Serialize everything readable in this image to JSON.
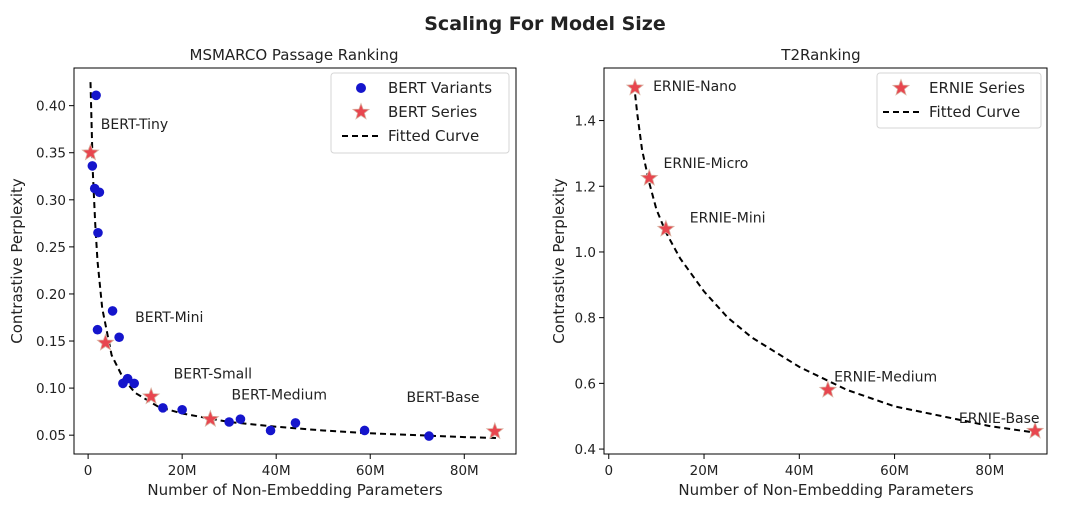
{
  "figure_title": "Scaling For Model Size",
  "colors": {
    "bert_variants": "#1515cc",
    "star_fill": "#e8464f",
    "star_stroke": "#d9b0a0",
    "fitted_curve": "#000000",
    "axes": "#000000"
  },
  "chart_data": [
    {
      "type": "scatter",
      "title": "MSMARCO Passage Ranking",
      "xlabel": "Number of Non-Embedding Parameters",
      "ylabel": "Contrastive Perplexity",
      "xlim": [
        -3,
        91
      ],
      "ylim": [
        0.03,
        0.44
      ],
      "xticks": [
        0,
        20,
        40,
        60,
        80
      ],
      "xtick_labels": [
        "0",
        "20M",
        "40M",
        "60M",
        "80M"
      ],
      "yticks": [
        0.05,
        0.1,
        0.15,
        0.2,
        0.25,
        0.3,
        0.35,
        0.4
      ],
      "ytick_labels": [
        "0.05",
        "0.10",
        "0.15",
        "0.20",
        "0.25",
        "0.30",
        "0.35",
        "0.40"
      ],
      "grid": false,
      "legend_placement": "top-right",
      "legend": [
        "BERT Variants",
        "BERT Series",
        "Fitted Curve"
      ],
      "series": [
        {
          "name": "BERT Variants",
          "marker": "circle",
          "x": [
            1.7,
            0.9,
            1.4,
            2.4,
            2.1,
            2.0,
            5.2,
            6.6,
            7.4,
            8.4,
            9.8,
            15.9,
            20.0,
            30.0,
            32.4,
            38.8,
            44.1,
            58.8,
            72.5
          ],
          "y": [
            0.411,
            0.336,
            0.312,
            0.308,
            0.265,
            0.162,
            0.182,
            0.154,
            0.105,
            0.11,
            0.105,
            0.079,
            0.077,
            0.064,
            0.067,
            0.055,
            0.063,
            0.055,
            0.049
          ]
        },
        {
          "name": "BERT Series",
          "marker": "star",
          "x": [
            0.5,
            3.7,
            13.4,
            26.0,
            86.5
          ],
          "y": [
            0.35,
            0.148,
            0.091,
            0.067,
            0.054
          ]
        },
        {
          "name": "Fitted Curve",
          "line": "dashed",
          "x": [
            0.5,
            1.0,
            1.5,
            2.0,
            3.0,
            5.0,
            7.5,
            10.0,
            15.0,
            20.0,
            30.0,
            40.0,
            50.0,
            60.0,
            70.0,
            80.0,
            87.0
          ],
          "y": [
            0.425,
            0.33,
            0.275,
            0.235,
            0.185,
            0.135,
            0.11,
            0.095,
            0.08,
            0.073,
            0.064,
            0.059,
            0.055,
            0.052,
            0.05,
            0.048,
            0.047
          ]
        }
      ],
      "annotations": [
        {
          "text": "BERT-Tiny",
          "x": 2.7,
          "y": 0.375
        },
        {
          "text": "BERT-Mini",
          "x": 10.0,
          "y": 0.17
        },
        {
          "text": "BERT-Small",
          "x": 18.2,
          "y": 0.11
        },
        {
          "text": "BERT-Medium",
          "x": 30.5,
          "y": 0.088
        },
        {
          "text": "BERT-Base",
          "x": 67.7,
          "y": 0.085
        }
      ]
    },
    {
      "type": "scatter",
      "title": "T2Ranking",
      "xlabel": "Number of Non-Embedding Parameters",
      "ylabel": "Contrastive Perplexity",
      "xlim": [
        -1,
        92
      ],
      "ylim": [
        0.385,
        1.56
      ],
      "xticks": [
        0,
        20,
        40,
        60,
        80
      ],
      "xtick_labels": [
        "0",
        "20M",
        "40M",
        "60M",
        "80M"
      ],
      "yticks": [
        0.4,
        0.6,
        0.8,
        1.0,
        1.2,
        1.4
      ],
      "ytick_labels": [
        "0.4",
        "0.6",
        "0.8",
        "1.0",
        "1.2",
        "1.4"
      ],
      "grid": false,
      "legend_placement": "top-right",
      "legend": [
        "ERNIE Series",
        "Fitted Curve"
      ],
      "series": [
        {
          "name": "ERNIE Series",
          "marker": "star",
          "x": [
            5.5,
            8.5,
            12.0,
            46.0,
            89.5
          ],
          "y": [
            1.5,
            1.225,
            1.07,
            0.58,
            0.455
          ]
        },
        {
          "name": "Fitted Curve",
          "line": "dashed",
          "x": [
            5.3,
            6.0,
            7.0,
            8.5,
            10.0,
            12.0,
            15.0,
            20.0,
            25.0,
            30.0,
            40.0,
            50.0,
            60.0,
            70.0,
            80.0,
            89.5
          ],
          "y": [
            1.51,
            1.42,
            1.31,
            1.21,
            1.13,
            1.06,
            0.98,
            0.88,
            0.8,
            0.74,
            0.65,
            0.58,
            0.53,
            0.5,
            0.47,
            0.45
          ]
        }
      ],
      "annotations": [
        {
          "text": "ERNIE-Nano",
          "x": 9.3,
          "y": 1.49
        },
        {
          "text": "ERNIE-Micro",
          "x": 11.5,
          "y": 1.255
        },
        {
          "text": "ERNIE-Mini",
          "x": 17.0,
          "y": 1.09
        },
        {
          "text": "ERNIE-Medium",
          "x": 47.3,
          "y": 0.605
        },
        {
          "text": "ERNIE-Base",
          "x": 73.5,
          "y": 0.48
        }
      ]
    }
  ]
}
